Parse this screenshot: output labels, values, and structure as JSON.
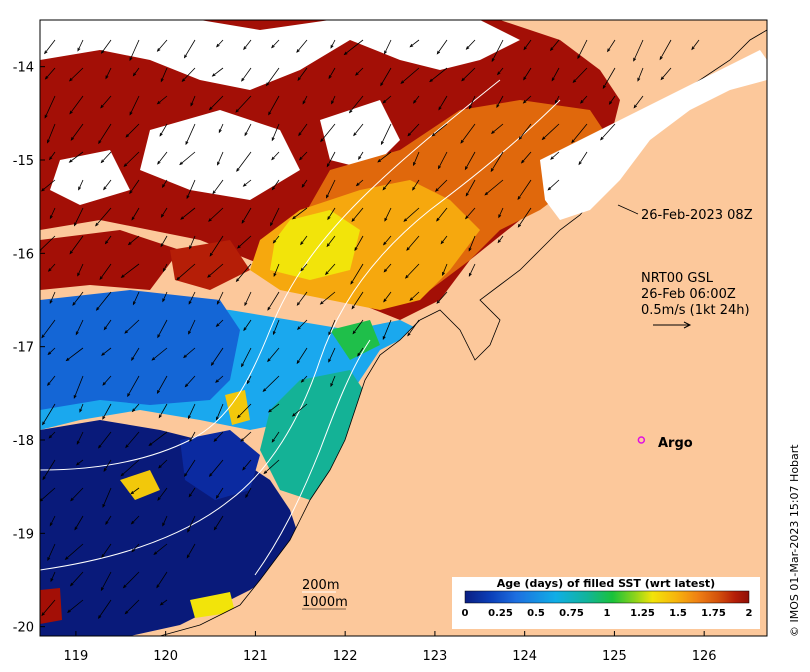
{
  "map": {
    "lon_ticks": [
      "119",
      "120",
      "121",
      "122",
      "123",
      "124",
      "125",
      "126"
    ],
    "lat_ticks": [
      "-14",
      "-15",
      "-16",
      "-17",
      "-18",
      "-19",
      "-20"
    ],
    "x_range": [
      118.6,
      126.7
    ],
    "y_range": [
      -20.1,
      -13.5
    ]
  },
  "annotations": {
    "altimetry_date": "26-Feb-2023 08Z",
    "current_source": "NRT00 GSL",
    "current_time": "26-Feb 06:00Z",
    "current_scale": "0.5m/s (1kt 24h)",
    "isobath_200": "200m",
    "isobath_1000": "1000m",
    "argo_label": "Argo"
  },
  "argo": {
    "lon": 125.3,
    "lat": -18.0
  },
  "legend": {
    "title": "Age (days) of filled SST (wrt latest)",
    "ticks": [
      "0",
      "0.25",
      "0.5",
      "0.75",
      "1",
      "1.25",
      "1.5",
      "1.75",
      "2"
    ],
    "colors": [
      "#0a1e82",
      "#0b3fb8",
      "#1d6fe0",
      "#10aee6",
      "#12b49a",
      "#19c23a",
      "#8fd41a",
      "#f2e40a",
      "#f7b70c",
      "#ef8014",
      "#d4530c",
      "#b51e07",
      "#8f0f07"
    ]
  },
  "colors": {
    "land": "#fcc89b",
    "no_data": "#ffffff",
    "isobath": "#ffffff",
    "argo": "#e010e0"
  },
  "credit": "© IMOS 01-Mar-2023 15:07 Hobart"
}
